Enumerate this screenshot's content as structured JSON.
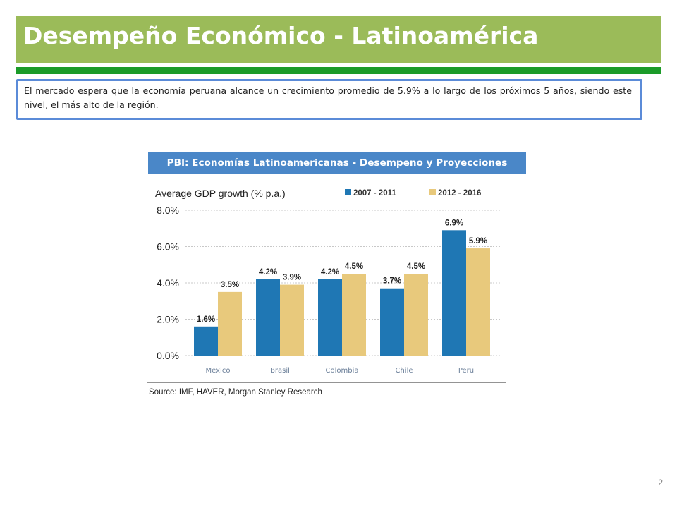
{
  "slide": {
    "title": "Desempeño Económico - Latinoamérica",
    "callout": "El mercado espera que la economía peruana alcance un crecimiento promedio de 5.9% a lo largo de los próximos 5 años, siendo este nivel, el más alto de la región.",
    "chart_header": "PBI: Economías Latinoamericanas - Desempeño y Proyecciones",
    "page_number": "2"
  },
  "colors": {
    "title_bar": "#9bbb59",
    "rule": "#1b9b29",
    "header": "#4a87c8",
    "series_1": "#1f77b4",
    "series_2": "#e8c97c"
  },
  "chart_data": {
    "type": "bar",
    "title": "Average GDP growth (% p.a.)",
    "categories": [
      "Mexico",
      "Brasil",
      "Colombia",
      "Chile",
      "Peru"
    ],
    "series": [
      {
        "name": "2007 - 2011",
        "values": [
          1.6,
          4.2,
          4.2,
          3.7,
          6.9
        ],
        "labels": [
          "1.6%",
          "4.2%",
          "4.2%",
          "3.7%",
          "6.9%"
        ]
      },
      {
        "name": "2012 - 2016",
        "values": [
          3.5,
          3.9,
          4.5,
          4.5,
          5.9
        ],
        "labels": [
          "3.5%",
          "3.9%",
          "4.5%",
          "4.5%",
          "5.9%"
        ]
      }
    ],
    "y_ticks": [
      0,
      2,
      4,
      6,
      8
    ],
    "y_tick_labels": [
      "0.0%",
      "2.0%",
      "4.0%",
      "6.0%",
      "8.0%"
    ],
    "ylim": [
      0,
      8
    ],
    "grid": true,
    "legend": "top",
    "source": "Source: IMF, HAVER, Morgan Stanley Research"
  }
}
